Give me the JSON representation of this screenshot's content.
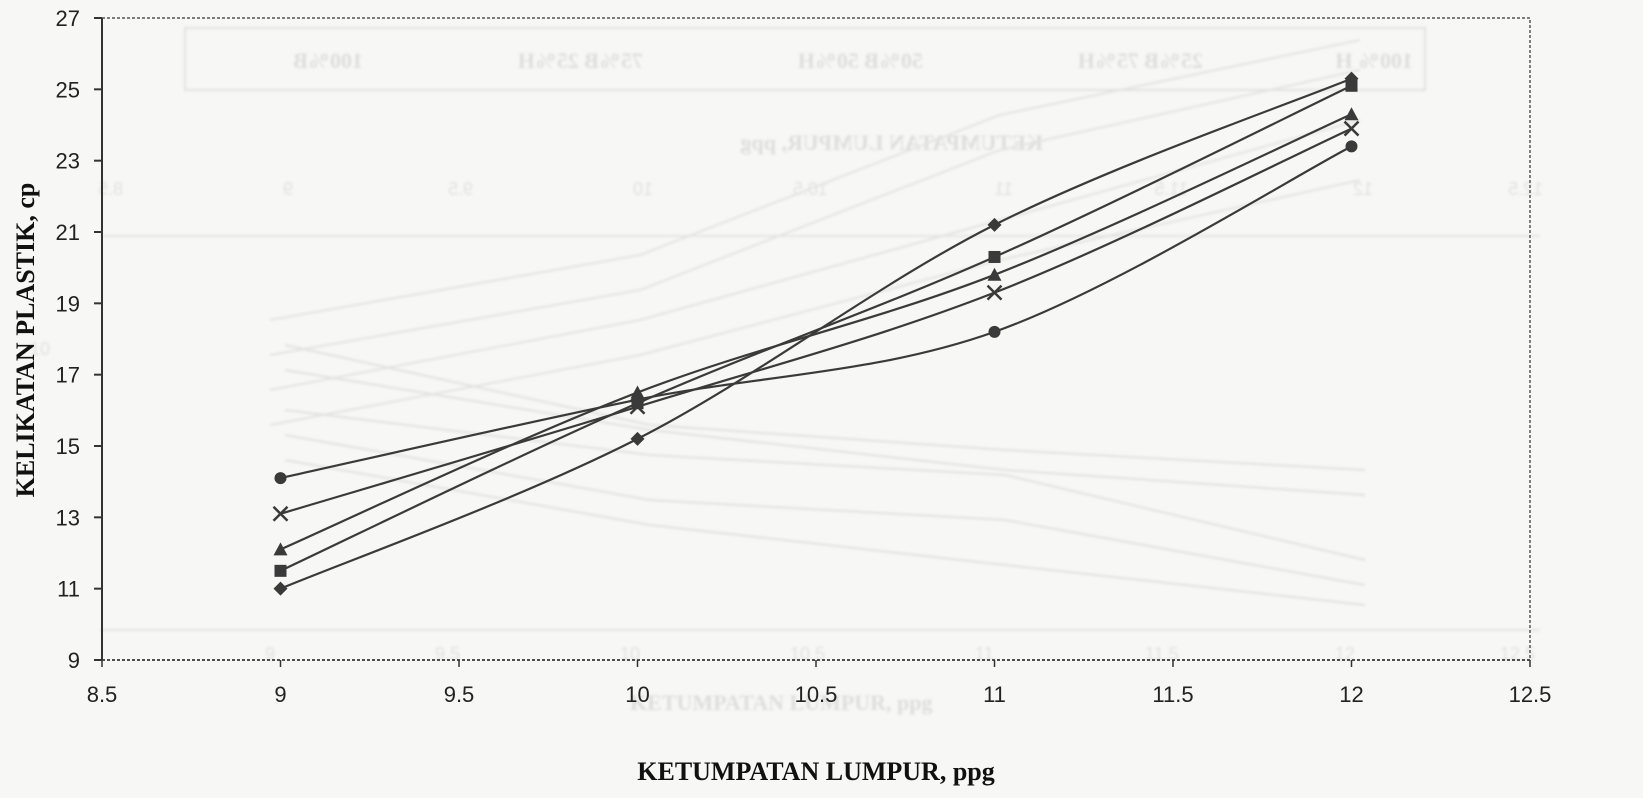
{
  "chart_data": {
    "type": "line",
    "title": "",
    "xlabel": "KETUMPATAN LUMPUR, ppg",
    "ylabel": "KELIKATAN PLASTIK, cp",
    "xlim": [
      8.5,
      12.5
    ],
    "ylim": [
      9,
      27
    ],
    "x_ticks": [
      "8.5",
      "9",
      "9.5",
      "10",
      "10.5",
      "11",
      "11.5",
      "12",
      "12.5"
    ],
    "y_ticks": [
      "9",
      "11",
      "13",
      "15",
      "17",
      "19",
      "21",
      "23",
      "25",
      "27"
    ],
    "grid": false,
    "legend": "none",
    "x": [
      9,
      10,
      11,
      12
    ],
    "series": [
      {
        "marker": "diamond",
        "values": [
          11.0,
          15.2,
          21.2,
          25.3
        ]
      },
      {
        "marker": "square",
        "values": [
          11.5,
          16.2,
          20.3,
          25.1
        ]
      },
      {
        "marker": "triangle",
        "values": [
          12.1,
          16.5,
          19.8,
          24.3
        ]
      },
      {
        "marker": "x",
        "values": [
          13.1,
          16.1,
          19.3,
          23.9
        ]
      },
      {
        "marker": "circle",
        "values": [
          14.1,
          16.3,
          18.2,
          23.4
        ]
      }
    ],
    "line_color": "#3a3a3a"
  },
  "ghost": {
    "legend_labels": [
      "100%B",
      "75%B 25%H",
      "50%B 50%H",
      "25%B 75%H",
      "100% H"
    ],
    "title_mirror": "KETUMPATAN LUMPUR, ppg",
    "xlabel_faint": "KETUMPATAN LUMPUR, ppg",
    "y_faint": "10",
    "mirror_ticks": [
      "12.5",
      "12",
      "11.5",
      "11",
      "10.5",
      "10",
      "9.5",
      "9",
      "8.5"
    ],
    "lower_ticks": [
      "9",
      "9.5",
      "10",
      "10.5",
      "11",
      "11.5",
      "12",
      "12.5"
    ]
  }
}
